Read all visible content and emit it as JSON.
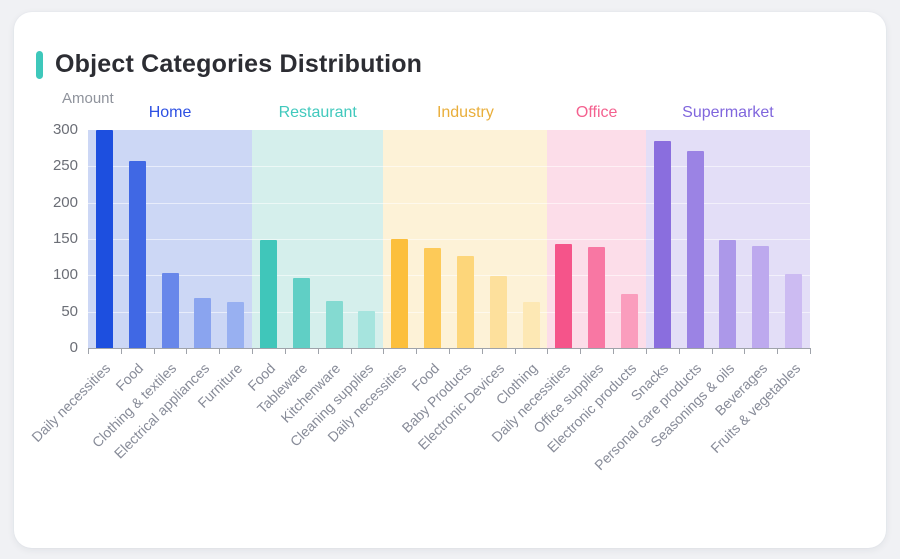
{
  "page": {
    "background_color": "#f0f1f4",
    "card_color": "#ffffff"
  },
  "header": {
    "title": "Object Categories Distribution",
    "accent_color": "#3ec8bb"
  },
  "chart_data": {
    "type": "bar",
    "title": "Object Categories Distribution",
    "xlabel": "",
    "ylabel": "Amount",
    "ylim": [
      0,
      300
    ],
    "yticks": [
      0,
      50,
      100,
      150,
      200,
      250,
      300
    ],
    "grid": true,
    "legend_position": "group-labels-above-bands",
    "groups": [
      {
        "name": "Home",
        "label_color": "#2e51e3",
        "band_color": "#ccd7f5",
        "categories": [
          "Daily necessities",
          "Food",
          "Clothing & textiles",
          "Electrical appliances",
          "Furniture"
        ],
        "values": [
          300,
          258,
          103,
          69,
          64
        ],
        "bar_colors": [
          "#1d4fdf",
          "#4068e4",
          "#6887ea",
          "#8aa4ef",
          "#98b0f1"
        ]
      },
      {
        "name": "Restaurant",
        "label_color": "#41c9bd",
        "band_color": "#d5efec",
        "categories": [
          "Food",
          "Tableware",
          "Kitchenware",
          "Cleaning supplies"
        ],
        "values": [
          148,
          97,
          65,
          51
        ],
        "bar_colors": [
          "#40c6ba",
          "#60cfc5",
          "#84dad1",
          "#a6e4de"
        ]
      },
      {
        "name": "Industry",
        "label_color": "#e9ae3a",
        "band_color": "#fdf2d7",
        "categories": [
          "Daily necessities",
          "Food",
          "Baby Products",
          "Electronic Devices",
          "Clothing"
        ],
        "values": [
          150,
          138,
          126,
          99,
          63
        ],
        "bar_colors": [
          "#fcbf3c",
          "#fdca58",
          "#fdd67a",
          "#fde09c",
          "#fde8b4"
        ]
      },
      {
        "name": "Office",
        "label_color": "#f4618f",
        "band_color": "#fcdde9",
        "categories": [
          "Daily necessities",
          "Office supplies",
          "Electronic products"
        ],
        "values": [
          143,
          139,
          75
        ],
        "bar_colors": [
          "#f5548a",
          "#f877a3",
          "#fa9dbd"
        ]
      },
      {
        "name": "Supermarket",
        "label_color": "#8066dd",
        "band_color": "#e3def7",
        "categories": [
          "Snacks",
          "Personal care products",
          "Seasonings & oils",
          "Beverages",
          "Fruits & vegetables"
        ],
        "values": [
          285,
          271,
          148,
          140,
          102
        ],
        "bar_colors": [
          "#8a6ede",
          "#9b83e4",
          "#ac98e9",
          "#bda9ee",
          "#ccbbf2"
        ]
      }
    ]
  }
}
